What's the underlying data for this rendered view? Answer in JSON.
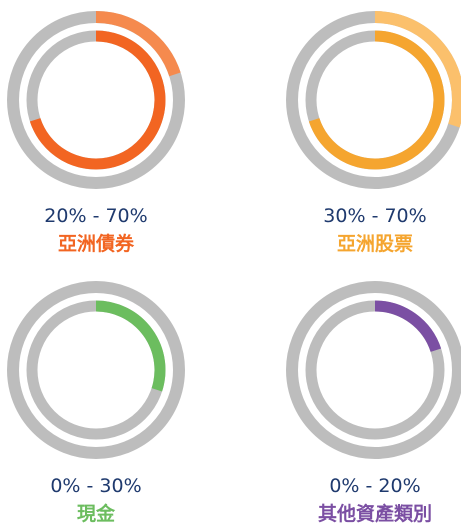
{
  "chart_data": {
    "type": "ring-range",
    "items": [
      {
        "name": "亞洲債券",
        "range_label": "20% - 70%",
        "min": 20,
        "max": 70,
        "color": "#f26522",
        "light_color": "#f58a4e"
      },
      {
        "name": "亞洲股票",
        "range_label": "30% - 70%",
        "min": 30,
        "max": 70,
        "color": "#f5a52f",
        "light_color": "#fbc06c"
      },
      {
        "name": "現金",
        "range_label": "0% - 30%",
        "min": 0,
        "max": 30,
        "color": "#6cbd5f",
        "light_color": "#98d18c"
      },
      {
        "name": "其他資產類別",
        "range_label": "0% - 20%",
        "min": 0,
        "max": 20,
        "color": "#7b4fa3",
        "light_color": "#a586c4"
      }
    ],
    "track_color": "#bdbdbd"
  }
}
